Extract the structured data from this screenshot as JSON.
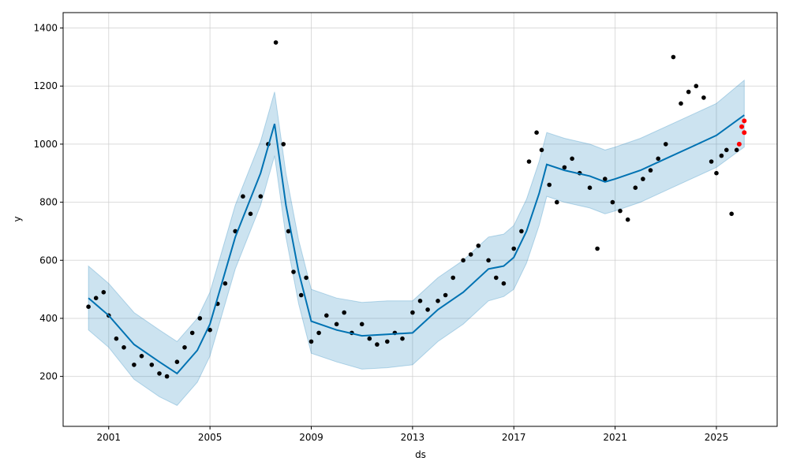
{
  "chart_data": {
    "type": "line",
    "title": "",
    "xlabel": "ds",
    "ylabel": "y",
    "xlim": [
      1999.2,
      2027.4
    ],
    "ylim": [
      28,
      1453
    ],
    "x_ticks": [
      2001,
      2005,
      2009,
      2013,
      2017,
      2021,
      2025
    ],
    "x_tick_labels": [
      "2001",
      "2005",
      "2009",
      "2013",
      "2017",
      "2021",
      "2025"
    ],
    "y_ticks": [
      200,
      400,
      600,
      800,
      1000,
      1200,
      1400
    ],
    "y_tick_labels": [
      "200",
      "400",
      "600",
      "800",
      "1000",
      "1200",
      "1400"
    ],
    "grid": true,
    "legend": "none",
    "colors": {
      "observed": "#000000",
      "forecast_line": "#0072B2",
      "interval_fill": "#0072B2",
      "highlight": "#ff0000",
      "axes": "#000000",
      "grid": "#cccccc"
    },
    "forecast": {
      "x": [
        2000.2,
        2001.0,
        2002.0,
        2003.0,
        2003.7,
        2004.5,
        2005.0,
        2006.0,
        2007.0,
        2007.55,
        2008.0,
        2008.5,
        2009.0,
        2010.0,
        2011.0,
        2012.0,
        2013.0,
        2014.0,
        2015.0,
        2016.0,
        2016.6,
        2017.0,
        2017.5,
        2018.0,
        2018.3,
        2019.0,
        2020.0,
        2020.6,
        2021.0,
        2022.0,
        2023.0,
        2024.0,
        2025.0,
        2026.1
      ],
      "yhat": [
        470,
        410,
        310,
        250,
        210,
        290,
        380,
        680,
        900,
        1070,
        790,
        560,
        390,
        360,
        340,
        345,
        350,
        430,
        490,
        570,
        580,
        610,
        700,
        830,
        930,
        910,
        890,
        870,
        880,
        910,
        950,
        990,
        1030,
        1100
      ],
      "yhat_lower": [
        360,
        300,
        190,
        130,
        100,
        180,
        270,
        570,
        790,
        960,
        680,
        450,
        280,
        250,
        225,
        230,
        240,
        320,
        380,
        460,
        475,
        500,
        590,
        720,
        820,
        800,
        780,
        760,
        770,
        800,
        840,
        880,
        920,
        990
      ],
      "yhat_upper": [
        580,
        520,
        420,
        360,
        320,
        400,
        490,
        790,
        1010,
        1180,
        900,
        670,
        500,
        470,
        455,
        460,
        460,
        540,
        600,
        680,
        690,
        720,
        810,
        940,
        1040,
        1020,
        1000,
        980,
        990,
        1020,
        1060,
        1100,
        1140,
        1220
      ]
    },
    "observed": {
      "x": [
        2000.2,
        2000.5,
        2000.8,
        2001.0,
        2001.3,
        2001.6,
        2002.0,
        2002.3,
        2002.7,
        2003.0,
        2003.3,
        2003.7,
        2004.0,
        2004.3,
        2004.6,
        2005.0,
        2005.3,
        2005.6,
        2006.0,
        2006.3,
        2006.6,
        2007.0,
        2007.3,
        2007.6,
        2007.9,
        2008.1,
        2008.3,
        2008.6,
        2008.8,
        2009.0,
        2009.3,
        2009.6,
        2010.0,
        2010.3,
        2010.6,
        2011.0,
        2011.3,
        2011.6,
        2012.0,
        2012.3,
        2012.6,
        2013.0,
        2013.3,
        2013.6,
        2014.0,
        2014.3,
        2014.6,
        2015.0,
        2015.3,
        2015.6,
        2016.0,
        2016.3,
        2016.6,
        2017.0,
        2017.3,
        2017.6,
        2017.9,
        2018.1,
        2018.4,
        2018.7,
        2019.0,
        2019.3,
        2019.6,
        2020.0,
        2020.3,
        2020.6,
        2020.9,
        2021.2,
        2021.5,
        2021.8,
        2022.1,
        2022.4,
        2022.7,
        2023.0,
        2023.3,
        2023.6,
        2023.9,
        2024.2,
        2024.5,
        2024.8,
        2025.0,
        2025.2,
        2025.4,
        2025.6,
        2025.8
      ],
      "y": [
        440,
        470,
        490,
        410,
        330,
        300,
        240,
        270,
        240,
        210,
        200,
        250,
        300,
        350,
        400,
        360,
        450,
        520,
        700,
        820,
        760,
        820,
        1000,
        1350,
        1000,
        700,
        560,
        480,
        540,
        320,
        350,
        410,
        380,
        420,
        350,
        380,
        330,
        310,
        320,
        350,
        330,
        420,
        460,
        430,
        460,
        480,
        540,
        600,
        620,
        650,
        600,
        540,
        520,
        640,
        700,
        940,
        1040,
        980,
        860,
        800,
        920,
        950,
        900,
        850,
        640,
        880,
        800,
        770,
        740,
        850,
        880,
        910,
        950,
        1000,
        1300,
        1140,
        1180,
        1200,
        1160,
        940,
        900,
        960,
        980,
        760,
        980
      ],
      "highlight_x": [
        2025.9,
        2026.0,
        2026.1,
        2026.1
      ],
      "highlight_y": [
        1000,
        1060,
        1080,
        1040
      ]
    }
  }
}
